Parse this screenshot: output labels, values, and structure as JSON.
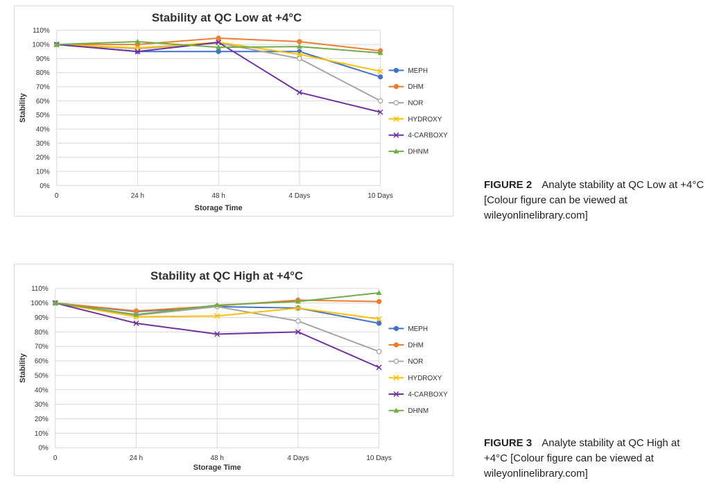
{
  "colors": {
    "MEPH": "#4472C4",
    "DHM": "#ED7D31",
    "NOR": "#A5A5A5",
    "HYDROXY": "#FFC000",
    "4-CARBOXY": "#7030A0",
    "DHNM": "#70AD47"
  },
  "chart_data": [
    {
      "type": "line",
      "title": "Stability at QC Low at +4°C",
      "xlabel": "Storage Time",
      "ylabel": "Stability",
      "categories": [
        "0",
        "24 h",
        "48 h",
        "4 Days",
        "10 Days"
      ],
      "y_ticks": [
        "0%",
        "10%",
        "20%",
        "30%",
        "40%",
        "50%",
        "60%",
        "70%",
        "80%",
        "90%",
        "100%",
        "110%"
      ],
      "ylim": [
        0,
        110
      ],
      "grid": true,
      "legend": "right",
      "series": [
        {
          "name": "MEPH",
          "marker": "circle",
          "values": [
            100,
            95,
            95,
            95,
            77
          ]
        },
        {
          "name": "DHM",
          "marker": "circle",
          "values": [
            100,
            100,
            104.5,
            102,
            95.5
          ]
        },
        {
          "name": "NOR",
          "marker": "open-circle",
          "values": [
            100,
            97,
            101,
            90,
            60
          ]
        },
        {
          "name": "HYDROXY",
          "marker": "x",
          "values": [
            100,
            97.5,
            101.5,
            93,
            81
          ]
        },
        {
          "name": "4-CARBOXY",
          "marker": "x",
          "values": [
            100,
            95,
            101.5,
            66,
            52
          ]
        },
        {
          "name": "DHNM",
          "marker": "triangle",
          "values": [
            100,
            102,
            98,
            98.5,
            94
          ]
        }
      ]
    },
    {
      "type": "line",
      "title": "Stability at QC High at +4°C",
      "xlabel": "Storage Time",
      "ylabel": "Stability",
      "categories": [
        "0",
        "24 h",
        "48 h",
        "4 Days",
        "10 Days"
      ],
      "y_ticks": [
        "0%",
        "10%",
        "20%",
        "30%",
        "40%",
        "50%",
        "60%",
        "70%",
        "80%",
        "90%",
        "100%",
        "110%"
      ],
      "ylim": [
        0,
        110
      ],
      "grid": true,
      "legend": "right",
      "series": [
        {
          "name": "MEPH",
          "marker": "circle",
          "values": [
            100,
            94,
            97.5,
            96.5,
            86
          ]
        },
        {
          "name": "DHM",
          "marker": "circle",
          "values": [
            100,
            94.5,
            98,
            102,
            101
          ]
        },
        {
          "name": "NOR",
          "marker": "open-circle",
          "values": [
            100,
            91.5,
            97.5,
            87.5,
            66.5
          ]
        },
        {
          "name": "HYDROXY",
          "marker": "x",
          "values": [
            100,
            90.5,
            91,
            96.5,
            89
          ]
        },
        {
          "name": "4-CARBOXY",
          "marker": "x",
          "values": [
            100,
            86,
            78.5,
            80,
            55.5
          ]
        },
        {
          "name": "DHNM",
          "marker": "triangle",
          "values": [
            100,
            92,
            98.5,
            101,
            107
          ]
        }
      ]
    }
  ],
  "captions": [
    {
      "label": "FIGURE 2",
      "text": "Analyte stability at QC Low at +4°C [Colour figure can be viewed at wileyonlinelibrary.com]"
    },
    {
      "label": "FIGURE 3",
      "text": "Analyte stability at QC High at +4°C [Colour figure can be viewed at wileyonlinelibrary.com]"
    }
  ]
}
